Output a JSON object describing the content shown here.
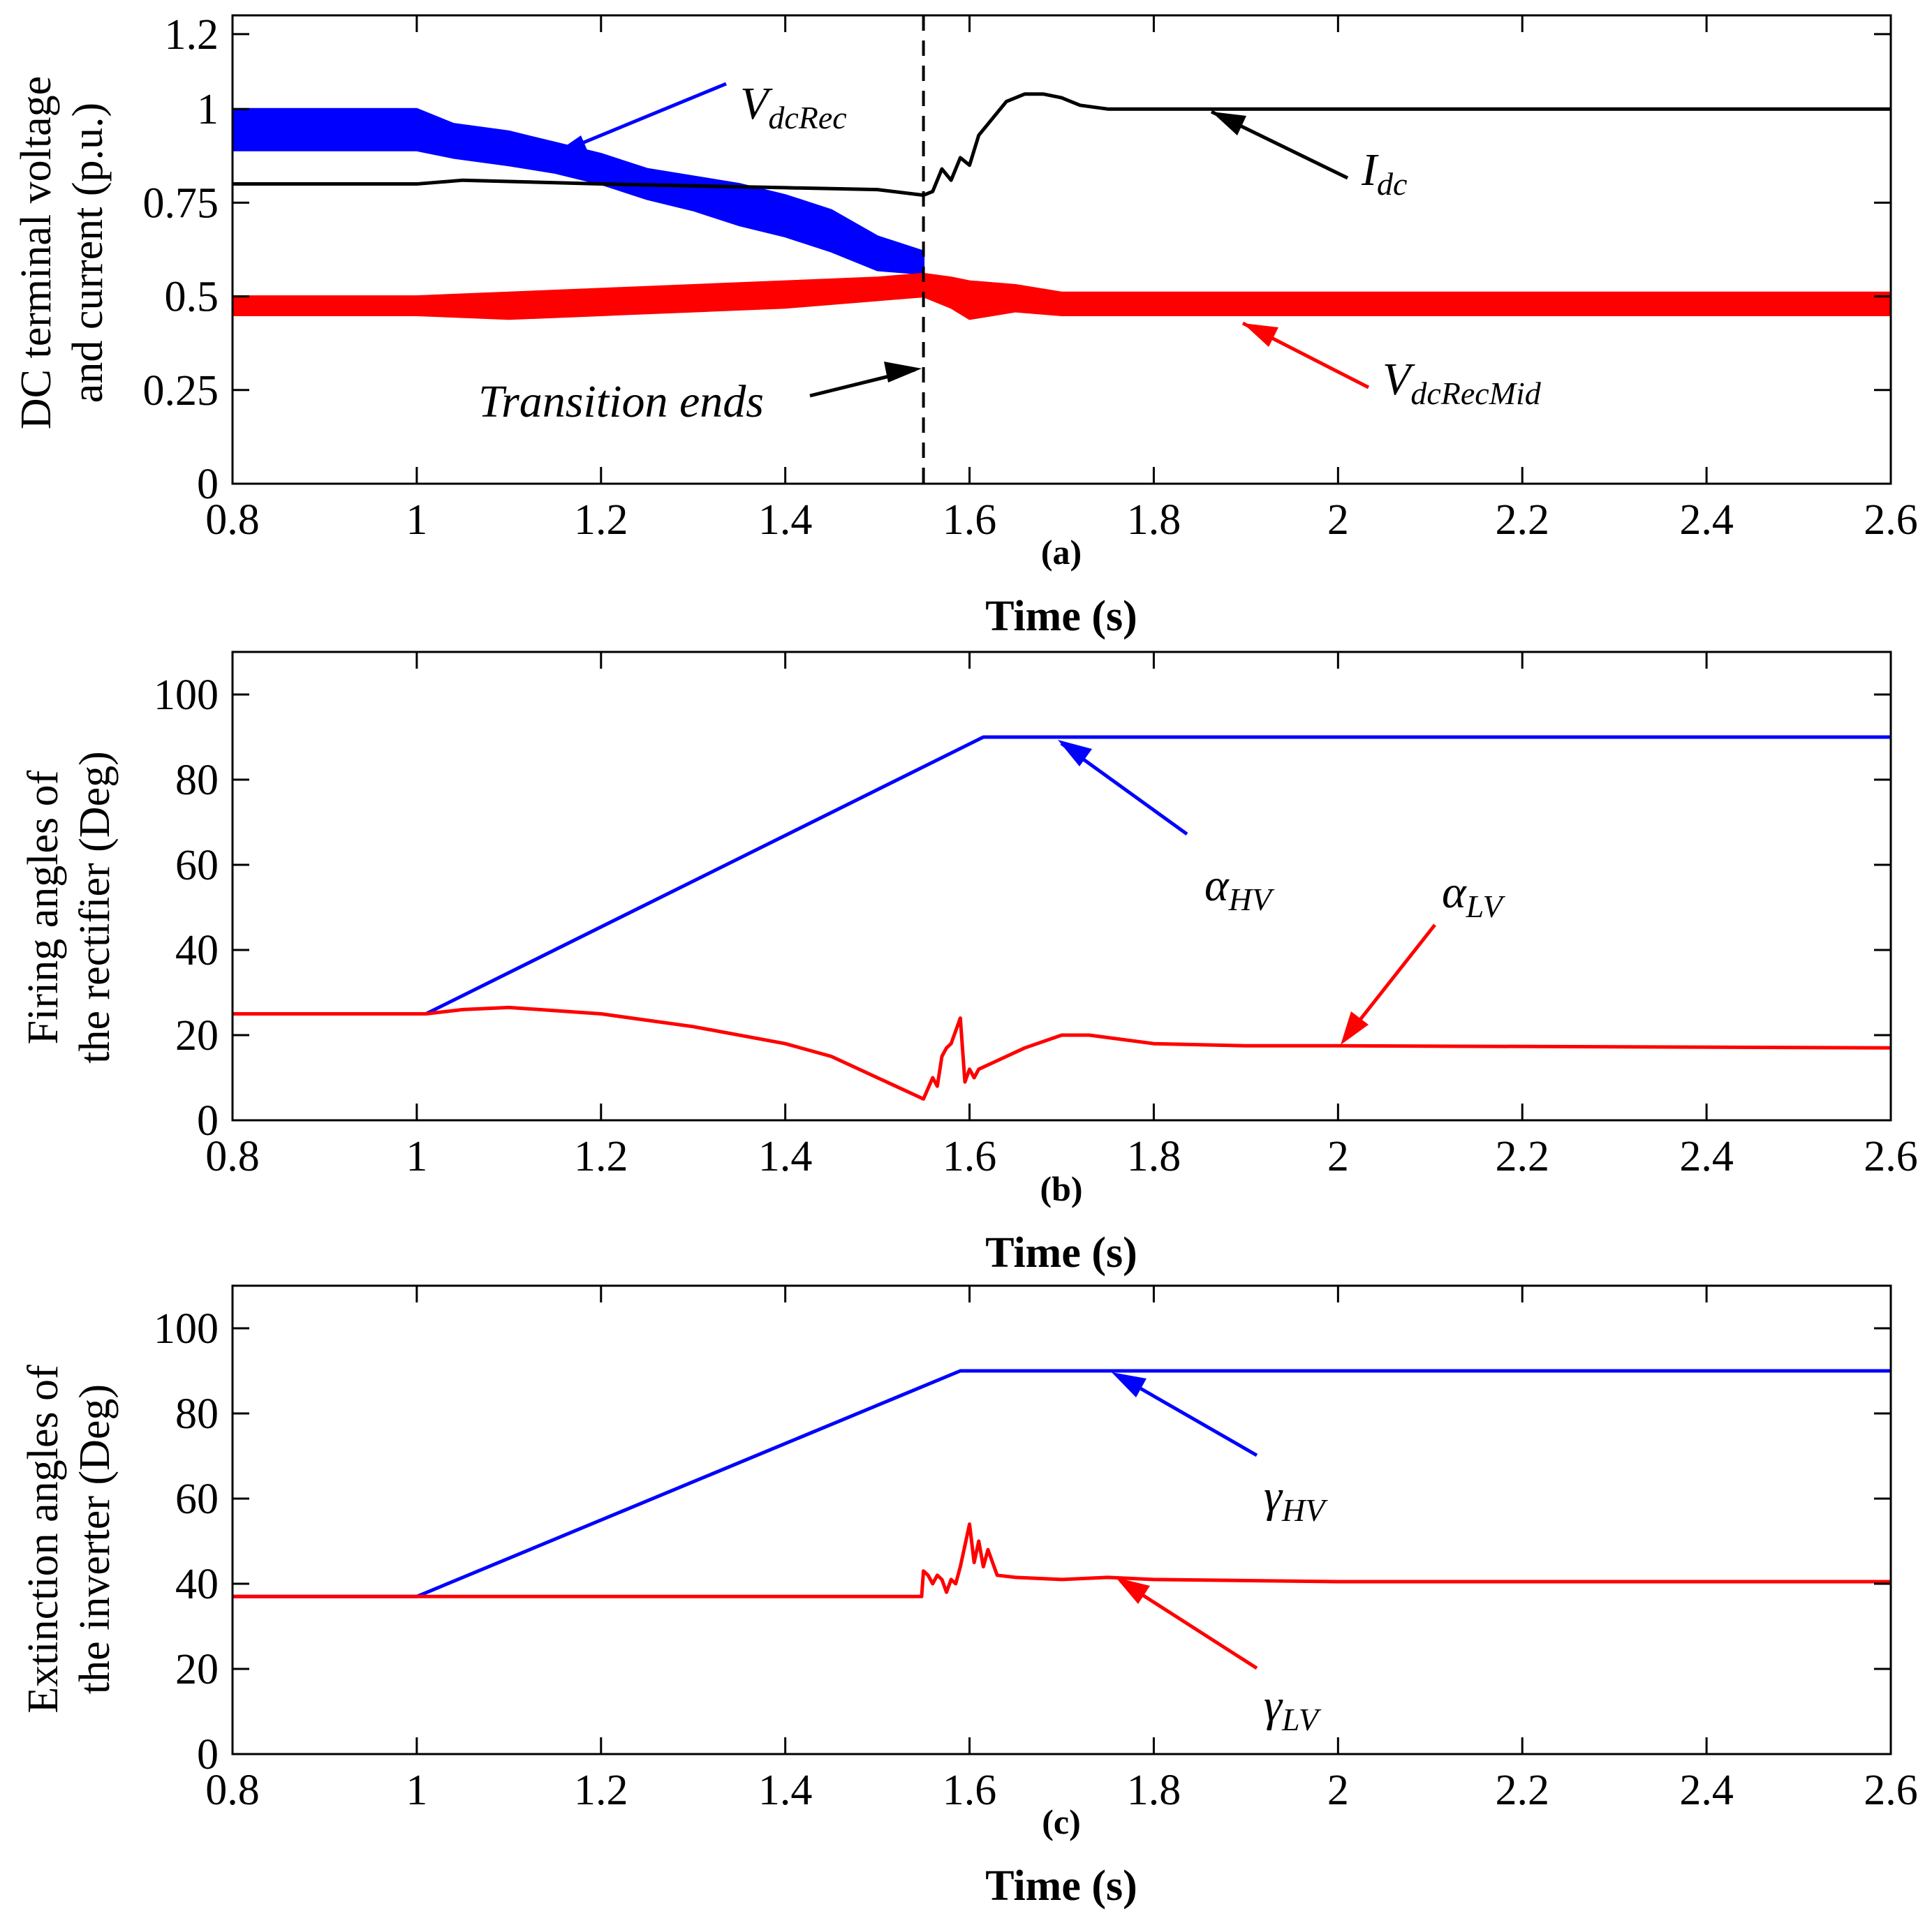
{
  "colors": {
    "blue": "#0000ff",
    "red": "#ff0000",
    "black": "#000000"
  },
  "chart_data": [
    {
      "type": "line",
      "panel_label": "(a)",
      "xlabel": "Time (s)",
      "ylabel": [
        "DC terminal voltage",
        "and current (p.u.)"
      ],
      "xlim": [
        0.8,
        2.6
      ],
      "ylim": [
        0,
        1.25
      ],
      "xticks": [
        0.8,
        1,
        1.2,
        1.4,
        1.6,
        1.8,
        2,
        2.2,
        2.4,
        2.6
      ],
      "xtick_labels": [
        "0.8",
        "1",
        "1.2",
        "1.4",
        "1.6",
        "1.8",
        "2",
        "2.2",
        "2.4",
        "2.6"
      ],
      "yticks": [
        0,
        0.25,
        0.5,
        0.75,
        1,
        1.2
      ],
      "ytick_labels": [
        "0",
        "0.25",
        "0.5",
        "0.75",
        "1",
        "1.2"
      ],
      "vline": {
        "x": 1.55,
        "style": "dashed"
      },
      "series": [
        {
          "name_main": "V",
          "name_sub": "dcRec",
          "color": "blue",
          "band": true,
          "x": [
            0.8,
            1.0,
            1.04,
            1.1,
            1.15,
            1.2,
            1.25,
            1.3,
            1.35,
            1.4,
            1.45,
            1.5,
            1.55
          ],
          "y_low": [
            0.89,
            0.89,
            0.87,
            0.85,
            0.83,
            0.8,
            0.76,
            0.73,
            0.69,
            0.66,
            0.62,
            0.57,
            0.56
          ],
          "y_high": [
            1.0,
            1.0,
            0.96,
            0.94,
            0.91,
            0.88,
            0.84,
            0.82,
            0.8,
            0.77,
            0.73,
            0.66,
            0.62
          ]
        },
        {
          "name_main": "V",
          "name_sub": "dcRecMid",
          "color": "red",
          "band": true,
          "x": [
            0.8,
            1.0,
            1.1,
            1.2,
            1.3,
            1.4,
            1.5,
            1.55,
            1.58,
            1.6,
            1.65,
            1.7,
            1.8,
            2.0,
            2.6
          ],
          "y_low": [
            0.45,
            0.45,
            0.44,
            0.45,
            0.46,
            0.47,
            0.49,
            0.5,
            0.47,
            0.44,
            0.46,
            0.45,
            0.45,
            0.45,
            0.45
          ],
          "y_high": [
            0.5,
            0.5,
            0.51,
            0.52,
            0.53,
            0.54,
            0.55,
            0.56,
            0.55,
            0.54,
            0.53,
            0.51,
            0.51,
            0.51,
            0.51
          ]
        },
        {
          "name_main": "I",
          "name_sub": "dc",
          "color": "black",
          "band": false,
          "x": [
            0.8,
            1.0,
            1.05,
            1.2,
            1.4,
            1.5,
            1.55,
            1.56,
            1.57,
            1.58,
            1.59,
            1.6,
            1.61,
            1.62,
            1.64,
            1.66,
            1.68,
            1.7,
            1.72,
            1.75,
            1.8,
            2.0,
            2.6
          ],
          "y": [
            0.8,
            0.8,
            0.81,
            0.8,
            0.79,
            0.785,
            0.77,
            0.78,
            0.84,
            0.81,
            0.87,
            0.85,
            0.93,
            0.96,
            1.02,
            1.04,
            1.04,
            1.03,
            1.01,
            1.0,
            1.0,
            1.0,
            1.0
          ]
        }
      ],
      "annotations": [
        {
          "text": "Transition ends"
        }
      ]
    },
    {
      "type": "line",
      "panel_label": "(b)",
      "xlabel": "Time (s)",
      "ylabel": [
        "Firing angles of",
        "the rectifier (Deg)"
      ],
      "xlim": [
        0.8,
        2.6
      ],
      "ylim": [
        0,
        110
      ],
      "xticks": [
        0.8,
        1,
        1.2,
        1.4,
        1.6,
        1.8,
        2,
        2.2,
        2.4,
        2.6
      ],
      "xtick_labels": [
        "0.8",
        "1",
        "1.2",
        "1.4",
        "1.6",
        "1.8",
        "2",
        "2.2",
        "2.4",
        "2.6"
      ],
      "yticks": [
        0,
        20,
        40,
        60,
        80,
        100
      ],
      "ytick_labels": [
        "0",
        "20",
        "40",
        "60",
        "80",
        "100"
      ],
      "series": [
        {
          "name_main": "α",
          "name_sub": "HV",
          "color": "blue",
          "x": [
            0.8,
            1.01,
            1.615,
            2.6
          ],
          "y": [
            25,
            25,
            90,
            90
          ]
        },
        {
          "name_main": "α",
          "name_sub": "LV",
          "color": "red",
          "x": [
            0.8,
            1.01,
            1.05,
            1.1,
            1.2,
            1.3,
            1.4,
            1.45,
            1.5,
            1.54,
            1.55,
            1.56,
            1.565,
            1.57,
            1.575,
            1.58,
            1.59,
            1.595,
            1.6,
            1.605,
            1.61,
            1.63,
            1.66,
            1.7,
            1.73,
            1.8,
            1.9,
            2.0,
            2.6
          ],
          "y": [
            25,
            25,
            26,
            26.5,
            25,
            22,
            18,
            15,
            10,
            6,
            5,
            10,
            8,
            15,
            17,
            18,
            24,
            9,
            12,
            10,
            12,
            14,
            17,
            20,
            20,
            18,
            17.5,
            17.5,
            17
          ]
        }
      ]
    },
    {
      "type": "line",
      "panel_label": "(c)",
      "xlabel": "Time (s)",
      "ylabel": [
        "Extinction angles of",
        "the inverter (Deg)"
      ],
      "xlim": [
        0.8,
        2.6
      ],
      "ylim": [
        0,
        110
      ],
      "xticks": [
        0.8,
        1,
        1.2,
        1.4,
        1.6,
        1.8,
        2,
        2.2,
        2.4,
        2.6
      ],
      "xtick_labels": [
        "0.8",
        "1",
        "1.2",
        "1.4",
        "1.6",
        "1.8",
        "2",
        "2.2",
        "2.4",
        "2.6"
      ],
      "yticks": [
        0,
        20,
        40,
        60,
        80,
        100
      ],
      "ytick_labels": [
        "0",
        "20",
        "40",
        "60",
        "80",
        "100"
      ],
      "series": [
        {
          "name_main": "γ",
          "name_sub": "HV",
          "color": "blue",
          "x": [
            0.8,
            1.0,
            1.59,
            2.6
          ],
          "y": [
            37,
            37,
            90,
            90
          ]
        },
        {
          "name_main": "γ",
          "name_sub": "LV",
          "color": "red",
          "x": [
            0.8,
            1.0,
            1.548,
            1.55,
            1.555,
            1.56,
            1.565,
            1.57,
            1.575,
            1.58,
            1.585,
            1.59,
            1.6,
            1.605,
            1.61,
            1.615,
            1.62,
            1.63,
            1.65,
            1.7,
            1.75,
            1.8,
            2.0,
            2.6
          ],
          "y": [
            37,
            37,
            37,
            43,
            42,
            40,
            42,
            41,
            38,
            41,
            40,
            44,
            54,
            45,
            50,
            44,
            48,
            42,
            41.5,
            41,
            41.5,
            41,
            40.5,
            40.5
          ]
        }
      ]
    }
  ]
}
